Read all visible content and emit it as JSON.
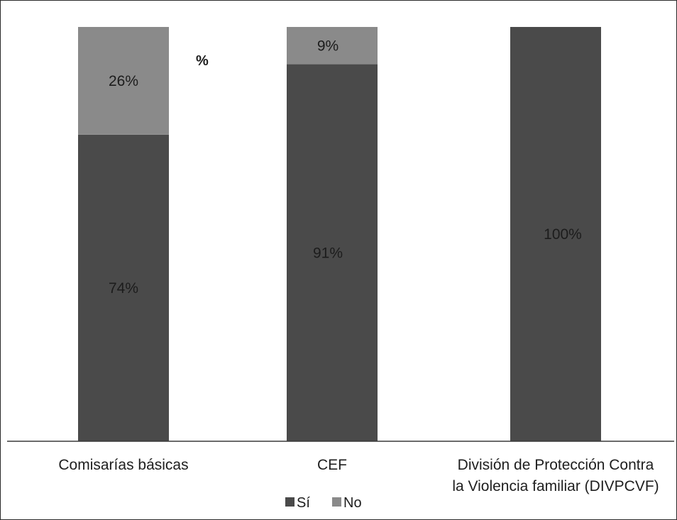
{
  "chart_data": {
    "type": "bar",
    "stacked": true,
    "unit_label": "%",
    "categories": [
      [
        "Comisarías básicas"
      ],
      [
        "CEF"
      ],
      [
        "División de Protección Contra",
        "la Violencia familiar (DIVPCVF)"
      ]
    ],
    "series": [
      {
        "name": "Sí",
        "values": [
          74,
          91,
          100
        ],
        "color": "#4a4a4a"
      },
      {
        "name": "No",
        "values": [
          26,
          9,
          0
        ],
        "color": "#8a8a8a"
      }
    ],
    "ylim": [
      0,
      100
    ],
    "grid": false,
    "legend": "bottom-center"
  }
}
